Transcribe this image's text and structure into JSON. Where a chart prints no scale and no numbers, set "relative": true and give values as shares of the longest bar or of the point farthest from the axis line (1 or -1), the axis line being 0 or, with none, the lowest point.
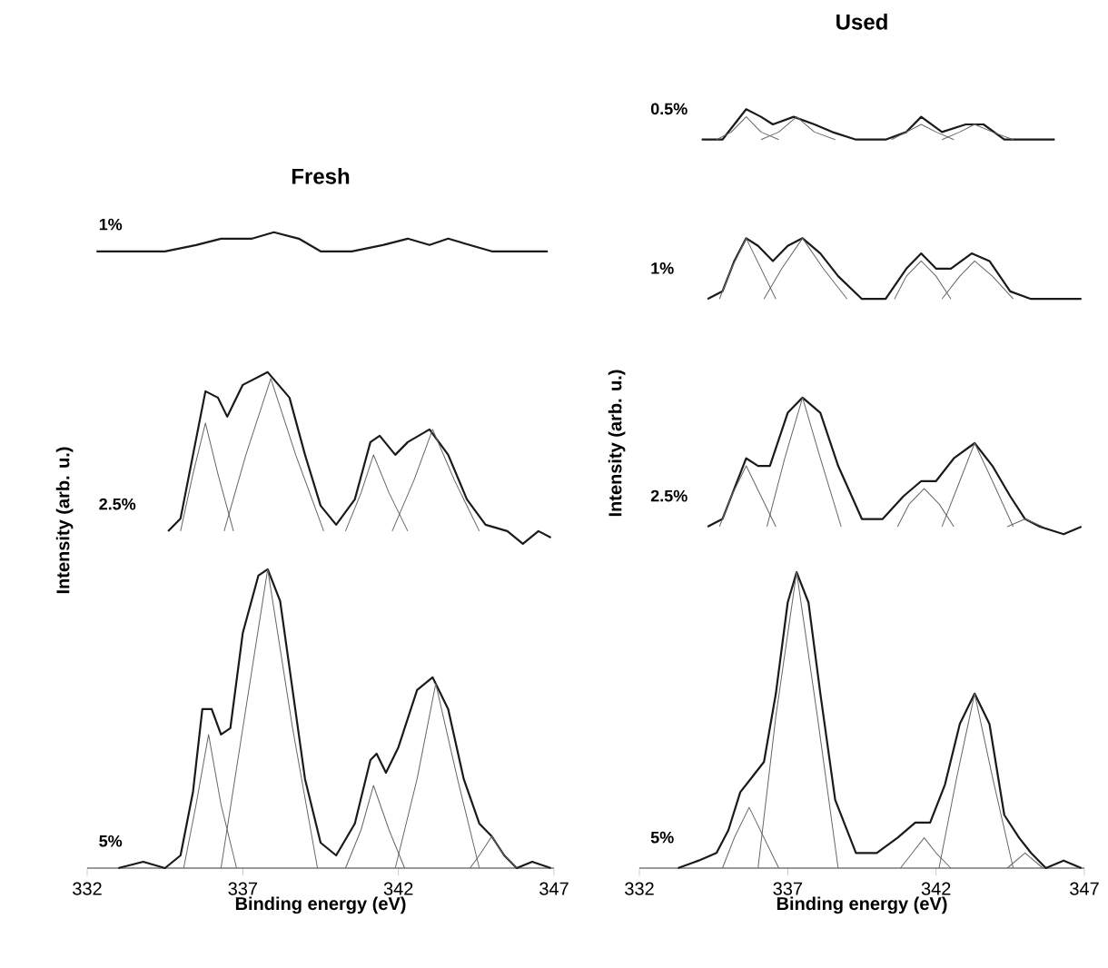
{
  "chart_data": [
    {
      "type": "line",
      "title": "Fresh",
      "xlabel": "Binding energy (eV)",
      "ylabel": "Intensity (arb. u.)",
      "relative": true,
      "xlim": [
        332,
        347
      ],
      "xticks": [
        332,
        337,
        342,
        347
      ],
      "series": [
        {
          "name": "1%",
          "color": "#1a1a1a",
          "x": [
            332.3,
            333.5,
            334.5,
            335.5,
            336.3,
            337.3,
            338,
            338.8,
            339.5,
            340.5,
            341.5,
            342.3,
            343,
            343.6,
            344.3,
            345,
            346,
            346.8
          ],
          "values": [
            0.97,
            0.97,
            0.97,
            0.98,
            0.99,
            0.99,
            1.0,
            0.99,
            0.97,
            0.97,
            0.98,
            0.99,
            0.98,
            0.99,
            0.98,
            0.97,
            0.97,
            0.97
          ]
        },
        {
          "name": "2.5%",
          "color": "#1a1a1a",
          "x": [
            334.6,
            335.0,
            335.4,
            335.8,
            336.2,
            336.5,
            337.0,
            337.8,
            338.5,
            339.0,
            339.5,
            340.0,
            340.6,
            341.1,
            341.4,
            341.9,
            342.3,
            343.0,
            343.6,
            344.2,
            344.8,
            345.5,
            346.0,
            346.5,
            346.9
          ],
          "values": [
            0.53,
            0.55,
            0.65,
            0.75,
            0.74,
            0.71,
            0.76,
            0.78,
            0.74,
            0.65,
            0.57,
            0.54,
            0.58,
            0.67,
            0.68,
            0.65,
            0.67,
            0.69,
            0.65,
            0.58,
            0.54,
            0.53,
            0.51,
            0.53,
            0.52
          ]
        },
        {
          "color": "#666666",
          "x": [
            335.0,
            335.4,
            335.8,
            336.2,
            336.7
          ],
          "values": [
            0.53,
            0.62,
            0.7,
            0.62,
            0.53
          ]
        },
        {
          "color": "#666666",
          "x": [
            336.4,
            337.1,
            337.9,
            338.7,
            339.6
          ],
          "values": [
            0.53,
            0.65,
            0.77,
            0.65,
            0.53
          ]
        },
        {
          "color": "#666666",
          "x": [
            340.3,
            340.8,
            341.2,
            341.7,
            342.3
          ],
          "values": [
            0.53,
            0.59,
            0.65,
            0.59,
            0.53
          ]
        },
        {
          "color": "#666666",
          "x": [
            341.8,
            342.5,
            343.1,
            343.8,
            344.6
          ],
          "values": [
            0.53,
            0.61,
            0.69,
            0.61,
            0.53
          ]
        },
        {
          "name": "5%",
          "color": "#1a1a1a",
          "x": [
            333.0,
            333.8,
            334.5,
            335.0,
            335.4,
            335.7,
            336.0,
            336.3,
            336.6,
            337.0,
            337.5,
            337.8,
            338.2,
            338.6,
            339.0,
            339.5,
            340.0,
            340.6,
            341.1,
            341.3,
            341.6,
            342.0,
            342.6,
            343.1,
            343.6,
            344.1,
            344.6,
            345.0,
            345.4,
            345.8,
            346.3,
            346.9
          ],
          "values": [
            0.0,
            0.01,
            0.0,
            0.02,
            0.12,
            0.25,
            0.25,
            0.21,
            0.22,
            0.37,
            0.46,
            0.47,
            0.42,
            0.28,
            0.14,
            0.04,
            0.02,
            0.07,
            0.17,
            0.18,
            0.15,
            0.19,
            0.28,
            0.3,
            0.25,
            0.14,
            0.07,
            0.05,
            0.02,
            0.0,
            0.01,
            0.0
          ]
        },
        {
          "color": "#666666",
          "x": [
            335.1,
            335.5,
            335.9,
            336.3,
            336.8
          ],
          "values": [
            0,
            0.1,
            0.21,
            0.1,
            0
          ]
        },
        {
          "color": "#666666",
          "x": [
            336.3,
            337.0,
            337.8,
            338.6,
            339.4
          ],
          "values": [
            0,
            0.22,
            0.47,
            0.22,
            0
          ]
        },
        {
          "color": "#666666",
          "x": [
            340.3,
            340.8,
            341.2,
            341.7,
            342.2
          ],
          "values": [
            0,
            0.06,
            0.13,
            0.06,
            0
          ]
        },
        {
          "color": "#666666",
          "x": [
            341.9,
            342.6,
            343.2,
            343.9,
            344.6
          ],
          "values": [
            0,
            0.14,
            0.29,
            0.14,
            0
          ]
        },
        {
          "color": "#666666",
          "x": [
            344.3,
            344.6,
            345.0,
            345.4,
            345.8
          ],
          "values": [
            0,
            0.02,
            0.05,
            0.02,
            0
          ]
        }
      ]
    },
    {
      "type": "line",
      "title": "Used",
      "xlabel": "Binding energy (eV)",
      "ylabel": "Intensity (arb. u.)",
      "relative": true,
      "xlim": [
        332,
        347
      ],
      "xticks": [
        332,
        337,
        342,
        347
      ],
      "series": [
        {
          "name": "0.5%",
          "color": "#1a1a1a",
          "x": [
            334.1,
            334.8,
            335.2,
            335.6,
            336.1,
            336.5,
            337.2,
            337.9,
            338.5,
            339.3,
            340.3,
            341.0,
            341.5,
            342.2,
            343.0,
            343.6,
            344.3,
            345.0,
            346.0
          ],
          "values": [
            0.96,
            0.96,
            0.98,
            1.0,
            0.99,
            0.98,
            0.99,
            0.98,
            0.97,
            0.96,
            0.96,
            0.97,
            0.99,
            0.97,
            0.98,
            0.98,
            0.96,
            0.96,
            0.96
          ]
        },
        {
          "color": "#666666",
          "x": [
            334.6,
            335.1,
            335.6,
            336.1,
            336.7
          ],
          "values": [
            0.96,
            0.97,
            0.99,
            0.97,
            0.96
          ]
        },
        {
          "color": "#666666",
          "x": [
            336.1,
            336.7,
            337.3,
            337.9,
            338.6
          ],
          "values": [
            0.96,
            0.97,
            0.99,
            0.97,
            0.96
          ]
        },
        {
          "color": "#666666",
          "x": [
            340.5,
            341.0,
            341.5,
            342.0,
            342.6
          ],
          "values": [
            0.96,
            0.97,
            0.98,
            0.97,
            0.96
          ]
        },
        {
          "color": "#666666",
          "x": [
            342.2,
            342.8,
            343.3,
            343.9,
            344.6
          ],
          "values": [
            0.96,
            0.97,
            0.98,
            0.97,
            0.96
          ]
        },
        {
          "name": "1%",
          "color": "#1a1a1a",
          "x": [
            334.3,
            334.8,
            335.2,
            335.6,
            336.0,
            336.5,
            337.0,
            337.5,
            338.1,
            338.7,
            339.5,
            340.3,
            341.0,
            341.5,
            342.0,
            342.5,
            343.2,
            343.8,
            344.5,
            345.2,
            346.0,
            346.9
          ],
          "values": [
            0.75,
            0.76,
            0.8,
            0.83,
            0.82,
            0.8,
            0.82,
            0.83,
            0.81,
            0.78,
            0.75,
            0.75,
            0.79,
            0.81,
            0.79,
            0.79,
            0.81,
            0.8,
            0.76,
            0.75,
            0.75,
            0.75
          ]
        },
        {
          "color": "#666666",
          "x": [
            334.7,
            335.1,
            335.6,
            336.1,
            336.6
          ],
          "values": [
            0.75,
            0.79,
            0.83,
            0.79,
            0.75
          ]
        },
        {
          "color": "#666666",
          "x": [
            336.2,
            336.8,
            337.5,
            338.2,
            339.0
          ],
          "values": [
            0.75,
            0.79,
            0.83,
            0.79,
            0.75
          ]
        },
        {
          "color": "#666666",
          "x": [
            340.6,
            341.0,
            341.5,
            342.0,
            342.5
          ],
          "values": [
            0.75,
            0.78,
            0.8,
            0.78,
            0.75
          ]
        },
        {
          "color": "#666666",
          "x": [
            342.2,
            342.8,
            343.3,
            343.9,
            344.6
          ],
          "values": [
            0.75,
            0.78,
            0.8,
            0.78,
            0.75
          ]
        },
        {
          "name": "2.5%",
          "color": "#1a1a1a",
          "x": [
            334.3,
            334.8,
            335.2,
            335.6,
            336.0,
            336.4,
            337.0,
            337.5,
            338.1,
            338.7,
            339.5,
            340.2,
            340.9,
            341.5,
            342.0,
            342.6,
            343.3,
            343.9,
            344.5,
            345.0,
            345.5,
            346.3,
            346.9
          ],
          "values": [
            0.45,
            0.46,
            0.5,
            0.54,
            0.53,
            0.53,
            0.6,
            0.62,
            0.6,
            0.53,
            0.46,
            0.46,
            0.49,
            0.51,
            0.51,
            0.54,
            0.56,
            0.53,
            0.49,
            0.46,
            0.45,
            0.44,
            0.45
          ]
        },
        {
          "color": "#666666",
          "x": [
            334.7,
            335.1,
            335.6,
            336.1,
            336.6
          ],
          "values": [
            0.45,
            0.49,
            0.53,
            0.49,
            0.45
          ]
        },
        {
          "color": "#666666",
          "x": [
            336.3,
            336.9,
            337.5,
            338.1,
            338.8
          ],
          "values": [
            0.45,
            0.54,
            0.62,
            0.54,
            0.45
          ]
        },
        {
          "color": "#666666",
          "x": [
            340.7,
            341.1,
            341.6,
            342.1,
            342.6
          ],
          "values": [
            0.45,
            0.48,
            0.5,
            0.48,
            0.45
          ]
        },
        {
          "color": "#666666",
          "x": [
            342.2,
            342.8,
            343.3,
            343.9,
            344.6
          ],
          "values": [
            0.45,
            0.51,
            0.56,
            0.51,
            0.45
          ]
        },
        {
          "color": "#666666",
          "x": [
            344.4,
            345.0,
            345.6
          ],
          "values": [
            0.45,
            0.46,
            0.45
          ]
        },
        {
          "name": "5%",
          "color": "#1a1a1a",
          "x": [
            333.3,
            334.0,
            334.6,
            335.0,
            335.4,
            335.8,
            336.2,
            336.6,
            337.0,
            337.3,
            337.7,
            338.1,
            338.6,
            339.3,
            340.0,
            340.7,
            341.3,
            341.8,
            342.3,
            342.8,
            343.3,
            343.8,
            344.3,
            344.8,
            345.2,
            345.7,
            346.3,
            346.9
          ],
          "values": [
            0.0,
            0.01,
            0.02,
            0.05,
            0.1,
            0.12,
            0.14,
            0.23,
            0.35,
            0.39,
            0.35,
            0.23,
            0.09,
            0.02,
            0.02,
            0.04,
            0.06,
            0.06,
            0.11,
            0.19,
            0.23,
            0.19,
            0.07,
            0.04,
            0.02,
            0.0,
            0.01,
            0.0
          ]
        },
        {
          "color": "#666666",
          "x": [
            334.8,
            335.2,
            335.7,
            336.2,
            336.7
          ],
          "values": [
            0,
            0.04,
            0.08,
            0.04,
            0
          ]
        },
        {
          "color": "#666666",
          "x": [
            336.0,
            336.6,
            337.3,
            338.0,
            338.7
          ],
          "values": [
            0,
            0.2,
            0.39,
            0.2,
            0
          ]
        },
        {
          "color": "#666666",
          "x": [
            340.8,
            341.2,
            341.6,
            342.0,
            342.5
          ],
          "values": [
            0,
            0.02,
            0.04,
            0.02,
            0
          ]
        },
        {
          "color": "#666666",
          "x": [
            342.1,
            342.7,
            343.3,
            343.9,
            344.6
          ],
          "values": [
            0,
            0.12,
            0.23,
            0.12,
            0
          ]
        },
        {
          "color": "#666666",
          "x": [
            344.4,
            345.0,
            345.6
          ],
          "values": [
            0,
            0.02,
            0
          ]
        }
      ]
    }
  ]
}
